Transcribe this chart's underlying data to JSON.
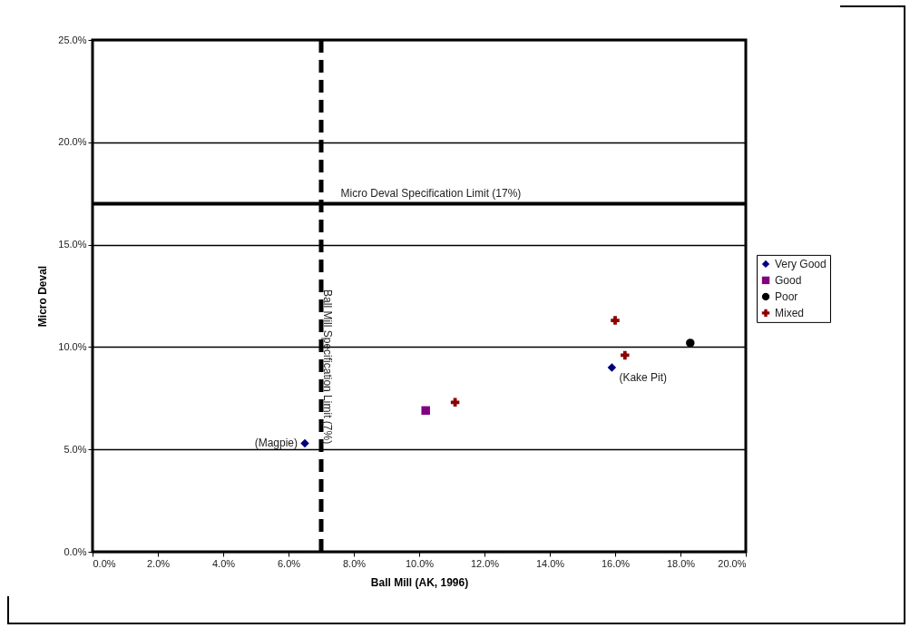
{
  "chart_data": {
    "type": "scatter",
    "xlabel": "Ball Mill (AK, 1996)",
    "ylabel": "Micro Deval",
    "xlim": [
      0,
      20
    ],
    "ylim": [
      0,
      25
    ],
    "xticks": [
      {
        "value": 0,
        "label": "0.0%"
      },
      {
        "value": 2,
        "label": "2.0%"
      },
      {
        "value": 4,
        "label": "4.0%"
      },
      {
        "value": 6,
        "label": "6.0%"
      },
      {
        "value": 8,
        "label": "8.0%"
      },
      {
        "value": 10,
        "label": "10.0%"
      },
      {
        "value": 12,
        "label": "12.0%"
      },
      {
        "value": 14,
        "label": "14.0%"
      },
      {
        "value": 16,
        "label": "16.0%"
      },
      {
        "value": 18,
        "label": "18.0%"
      },
      {
        "value": 20,
        "label": "20.0%"
      }
    ],
    "yticks": [
      {
        "value": 0,
        "label": "0.0%"
      },
      {
        "value": 5,
        "label": "5.0%"
      },
      {
        "value": 10,
        "label": "10.0%"
      },
      {
        "value": 15,
        "label": "15.0%"
      },
      {
        "value": 20,
        "label": "20.0%"
      },
      {
        "value": 25,
        "label": "25.0%"
      }
    ],
    "grid": "y",
    "legend": "right",
    "series": [
      {
        "name": "Very Good",
        "color": "#000080",
        "marker": "diamond",
        "x": [
          6.5,
          15.9
        ],
        "values": [
          5.3,
          9.0
        ]
      },
      {
        "name": "Good",
        "color": "#800080",
        "marker": "square",
        "x": [
          10.2
        ],
        "values": [
          6.9
        ]
      },
      {
        "name": "Poor",
        "color": "#000000",
        "marker": "circle",
        "x": [
          18.3
        ],
        "values": [
          10.2
        ]
      },
      {
        "name": "Mixed",
        "color": "#8b0000",
        "marker": "cross",
        "x": [
          11.1,
          16.0,
          16.3
        ],
        "values": [
          7.3,
          11.3,
          9.6
        ]
      }
    ],
    "ref_lines": [
      {
        "axis": "y",
        "value": 17,
        "label": "Micro Deval Specification Limit (17%)",
        "line_style": "solid"
      },
      {
        "axis": "x",
        "value": 7,
        "label": "Ball Mill Specification Limit (7%)",
        "line_style": "dashed"
      }
    ],
    "annotations": [
      {
        "text": "(Magpie)",
        "x": 6.5,
        "y": 5.3
      },
      {
        "text": "(Kake Pit)",
        "x": 15.9,
        "y": 9.0
      }
    ]
  }
}
